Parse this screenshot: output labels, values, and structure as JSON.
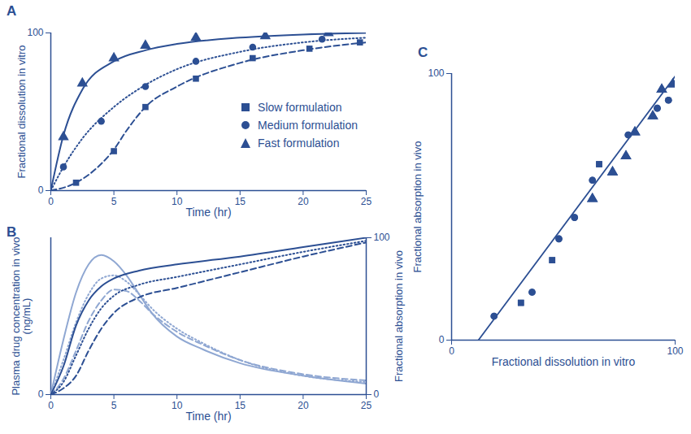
{
  "chart_data": [
    {
      "type": "line",
      "panel_label": "A",
      "xlabel": "Time (hr)",
      "ylabel": "Fractional dissolution in vitro",
      "xlim": [
        0,
        25
      ],
      "xticks": [
        0,
        5,
        10,
        15,
        20,
        25
      ],
      "ylim": [
        0,
        100
      ],
      "yticks": [
        0,
        100
      ],
      "legend": "right",
      "series": [
        {
          "name": "Slow formulation",
          "color": "#2c4f93",
          "marker": "square",
          "line_style": "dashed",
          "x": [
            2,
            5,
            7.5,
            11.5,
            16,
            20.5,
            24.5
          ],
          "values": [
            5,
            25,
            53,
            71,
            84,
            90,
            94
          ],
          "curve": {
            "x": [
              0,
              2,
              4,
              5,
              6,
              7.5,
              10,
              15,
              20,
              25
            ],
            "values": [
              0,
              5,
              17,
              26,
              38,
              53,
              66,
              81,
              89,
              94
            ]
          }
        },
        {
          "name": "Medium formulation",
          "color": "#2c4f93",
          "marker": "circle",
          "line_style": "dotted",
          "x": [
            1,
            4,
            7.5,
            11.5,
            16,
            21.5
          ],
          "values": [
            15,
            44,
            66,
            82,
            91,
            96
          ],
          "curve": {
            "x": [
              0,
              1,
              2.5,
              5,
              7.5,
              10,
              15,
              20,
              25
            ],
            "values": [
              0,
              15,
              33,
              53,
              67,
              77,
              88,
              94,
              97
            ]
          }
        },
        {
          "name": "Fast formulation",
          "color": "#2c4f93",
          "marker": "triangle",
          "line_style": "solid",
          "x": [
            1,
            2.5,
            5,
            7.5,
            11.5,
            17,
            22
          ],
          "values": [
            34,
            68,
            84,
            92,
            97,
            98,
            100
          ],
          "curve": {
            "x": [
              0,
              1,
              2.5,
              5,
              7.5,
              10,
              15,
              20,
              25
            ],
            "values": [
              0,
              35,
              64,
              82,
              89,
              93,
              97,
              99,
              100
            ]
          }
        }
      ]
    },
    {
      "type": "line",
      "panel_label": "B",
      "xlabel": "Time (hr)",
      "ylabel": "Plasma drug concentration in vivo (ng/mL)",
      "y2label": "Fractional absorption in vivo",
      "xlim": [
        0,
        25
      ],
      "xticks": [
        0,
        5,
        10,
        15,
        20,
        25
      ],
      "ylim": [
        0,
        100
      ],
      "yticks": [
        0
      ],
      "y2lim": [
        0,
        100
      ],
      "y2ticks": [
        0,
        100
      ],
      "series": [
        {
          "color": "#8fa7d2",
          "line_style": "solid",
          "axis": "y",
          "x": [
            0,
            1,
            2,
            3,
            4,
            5,
            6,
            7,
            8,
            10,
            12,
            15,
            20,
            25
          ],
          "values": [
            0,
            35,
            65,
            83,
            89,
            85,
            76,
            64,
            52,
            37,
            29,
            20,
            12,
            7
          ]
        },
        {
          "color": "#8fa7d2",
          "line_style": "dotted",
          "axis": "y",
          "x": [
            0,
            1,
            2,
            3,
            4,
            5,
            6,
            7,
            8,
            10,
            12,
            15,
            20,
            25
          ],
          "values": [
            0,
            22,
            46,
            64,
            74,
            76,
            72,
            64,
            55,
            42,
            33,
            22,
            12,
            8
          ]
        },
        {
          "color": "#8fa7d2",
          "line_style": "dashed",
          "axis": "y",
          "x": [
            0,
            1,
            2,
            3,
            4,
            5,
            6,
            7,
            8,
            10,
            12,
            15,
            20,
            25
          ],
          "values": [
            0,
            10,
            28,
            47,
            60,
            67,
            66,
            60,
            52,
            40,
            32,
            22,
            13,
            9
          ]
        },
        {
          "color": "#2c4f93",
          "line_style": "solid",
          "axis": "y2",
          "x": [
            0,
            1,
            2,
            3,
            4,
            5,
            7,
            10,
            15,
            20,
            25
          ],
          "values": [
            0,
            18,
            44,
            60,
            69,
            74,
            79,
            83,
            88,
            94,
            100
          ]
        },
        {
          "color": "#2c4f93",
          "line_style": "dotted",
          "axis": "y2",
          "x": [
            0,
            1,
            2,
            3,
            4,
            5,
            7,
            10,
            15,
            20,
            25
          ],
          "values": [
            0,
            8,
            25,
            42,
            55,
            63,
            70,
            75,
            83,
            91,
            98
          ]
        },
        {
          "color": "#2c4f93",
          "line_style": "dashed",
          "axis": "y2",
          "x": [
            0,
            1,
            2,
            3,
            4,
            5,
            7,
            10,
            15,
            20,
            25
          ],
          "values": [
            0,
            4,
            12,
            28,
            42,
            52,
            62,
            68,
            78,
            88,
            97
          ]
        }
      ]
    },
    {
      "type": "scatter",
      "panel_label": "C",
      "xlabel": "Fractional dissolution in vitro",
      "ylabel": "Fractional absorption in vivo",
      "xlim": [
        0,
        100
      ],
      "xticks": [
        0,
        100
      ],
      "ylim": [
        0,
        100
      ],
      "yticks": [
        0,
        100
      ],
      "series": [
        {
          "color": "#2c4f93",
          "marker": "square",
          "x": [
            31,
            45,
            66
          ],
          "values": [
            14,
            30,
            66
          ]
        },
        {
          "color": "#2c4f93",
          "marker": "circle",
          "x": [
            19,
            36,
            48,
            55,
            63,
            79,
            92,
            97
          ],
          "values": [
            9,
            18,
            38,
            46,
            60,
            77,
            87,
            90
          ]
        },
        {
          "color": "#2c4f93",
          "marker": "triangle",
          "x": [
            63,
            72,
            78,
            82,
            90,
            94,
            99
          ],
          "values": [
            53,
            63,
            69,
            78,
            84,
            94,
            96
          ]
        }
      ],
      "fit_line": {
        "color": "#2c4f93",
        "x": [
          12,
          100
        ],
        "values": [
          0,
          99
        ]
      }
    }
  ]
}
